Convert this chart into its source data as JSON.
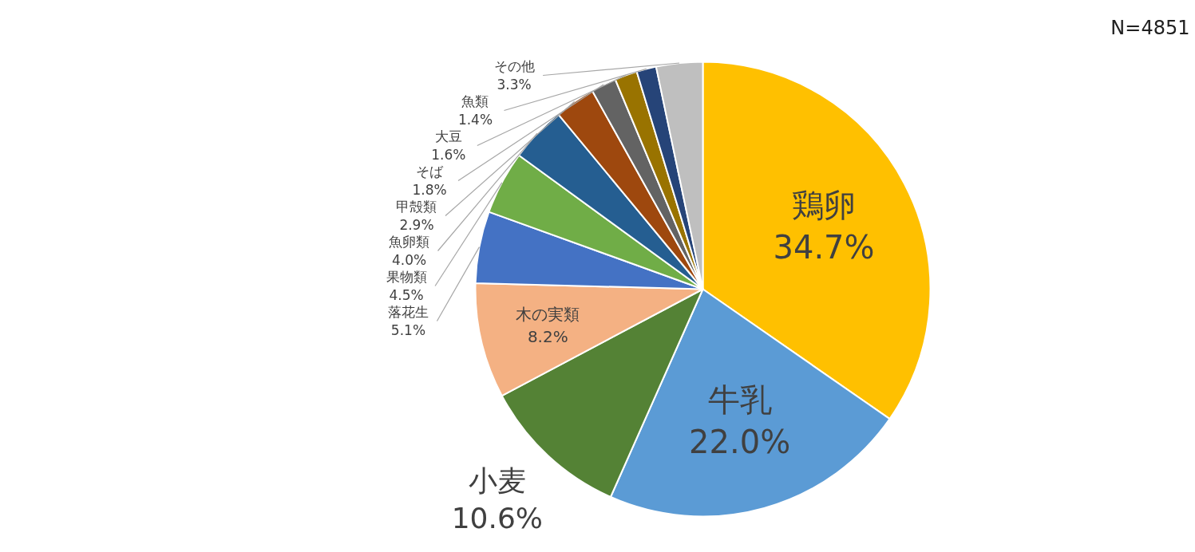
{
  "chart_data": {
    "type": "pie",
    "categories": [
      "鶏卵",
      "牛乳",
      "小麦",
      "木の実類",
      "落花生",
      "果物類",
      "魚卵類",
      "甲殻類",
      "そば",
      "大豆",
      "魚類",
      "その他"
    ],
    "values": [
      34.7,
      22.0,
      10.6,
      8.2,
      5.1,
      4.5,
      4.0,
      2.9,
      1.8,
      1.6,
      1.4,
      3.3
    ],
    "value_labels": [
      "34.7%",
      "22.0%",
      "10.6%",
      "8.2%",
      "5.1%",
      "4.5%",
      "4.0%",
      "2.9%",
      "1.8%",
      "1.6%",
      "1.4%",
      "3.3%"
    ],
    "colors": [
      "#ffc000",
      "#5b9bd5",
      "#548235",
      "#f4b183",
      "#4472c4",
      "#70ad47",
      "#255e91",
      "#9e480e",
      "#636363",
      "#997300",
      "#264478",
      "#bfbfbf"
    ],
    "annotations": [
      "N=4851"
    ]
  }
}
